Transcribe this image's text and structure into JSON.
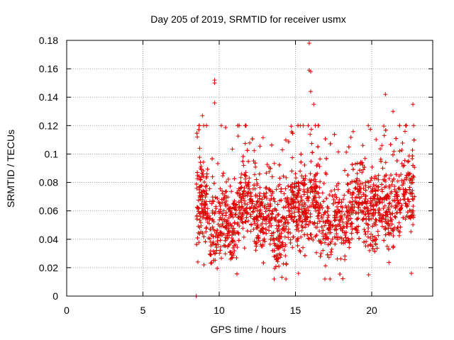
{
  "chart_data": {
    "type": "scatter",
    "title": "Day 205 of 2019, SRMTID for receiver usmx",
    "xlabel": "GPS time / hours",
    "ylabel": "SRMTID / TECUs",
    "xlim": [
      0,
      24
    ],
    "ylim": [
      0,
      0.18
    ],
    "xticks": [
      0,
      5,
      10,
      15,
      20
    ],
    "yticks": [
      0,
      0.02,
      0.04,
      0.06,
      0.08,
      0.1,
      0.12,
      0.14,
      0.16,
      0.18
    ],
    "ytick_labels": [
      "0",
      "0.02",
      "0.04",
      "0.06",
      "0.08",
      "0.1",
      "0.12",
      "0.14",
      "0.16",
      "0.18"
    ],
    "grid": true,
    "marker": "+",
    "color": "#e00000",
    "series": [
      {
        "name": "SRMTID",
        "point_count_estimate": 2400,
        "time_range_hours": [
          8.5,
          22.8
        ],
        "typical_value_range": [
          0.03,
          0.09
        ],
        "outliers": [
          {
            "x": 8.5,
            "y": 0.0
          },
          {
            "x": 8.6,
            "y": 0.024
          },
          {
            "x": 8.9,
            "y": 0.127
          },
          {
            "x": 9.0,
            "y": 0.022
          },
          {
            "x": 9.7,
            "y": 0.152
          },
          {
            "x": 9.7,
            "y": 0.15
          },
          {
            "x": 9.7,
            "y": 0.136
          },
          {
            "x": 15.2,
            "y": 0.016
          },
          {
            "x": 15.9,
            "y": 0.178
          },
          {
            "x": 15.9,
            "y": 0.159
          },
          {
            "x": 16.0,
            "y": 0.158
          },
          {
            "x": 16.0,
            "y": 0.144
          },
          {
            "x": 16.2,
            "y": 0.135
          },
          {
            "x": 19.8,
            "y": 0.015
          },
          {
            "x": 20.9,
            "y": 0.142
          },
          {
            "x": 21.4,
            "y": 0.13
          },
          {
            "x": 22.6,
            "y": 0.016
          },
          {
            "x": 22.7,
            "y": 0.135
          }
        ]
      }
    ]
  }
}
